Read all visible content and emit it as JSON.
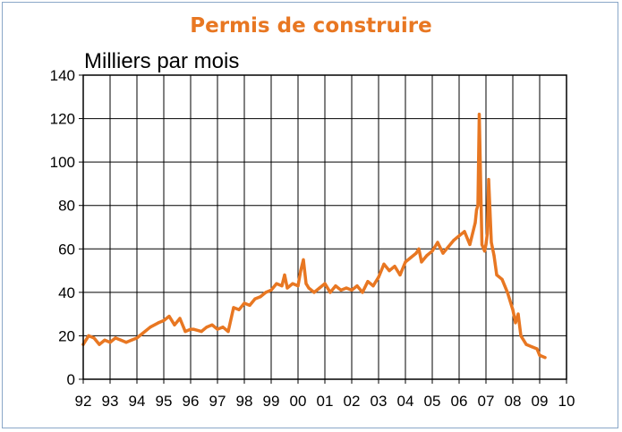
{
  "chart_data": {
    "type": "line",
    "title": "Permis de construire",
    "ylabel": "Milliers par mois",
    "xlabel": "",
    "ylim": [
      0,
      140
    ],
    "yticks": [
      0,
      20,
      40,
      60,
      80,
      100,
      120,
      140
    ],
    "xlim": [
      1992,
      2010
    ],
    "xtick_labels": [
      "92",
      "93",
      "94",
      "95",
      "96",
      "97",
      "98",
      "99",
      "00",
      "01",
      "02",
      "03",
      "04",
      "05",
      "06",
      "07",
      "08",
      "09",
      "10"
    ],
    "grid": true,
    "legend": "none",
    "color": "#e87722",
    "series": [
      {
        "x": [
          1992.0,
          1992.2,
          1992.4,
          1992.6,
          1992.8,
          1993.0,
          1993.2,
          1993.4,
          1993.6,
          1993.8,
          1994.0,
          1994.2,
          1994.5,
          1994.8,
          1995.0,
          1995.2,
          1995.4,
          1995.6,
          1995.8,
          1996.0,
          1996.1,
          1996.4,
          1996.6,
          1996.8,
          1997.0,
          1997.2,
          1997.4,
          1997.6,
          1997.8,
          1998.0,
          1998.2,
          1998.4,
          1998.6,
          1998.8,
          1999.0,
          1999.2,
          1999.4,
          1999.5,
          1999.6,
          1999.8,
          2000.0,
          2000.1,
          2000.2,
          2000.3,
          2000.4,
          2000.6,
          2000.8,
          2001.0,
          2001.2,
          2001.4,
          2001.6,
          2001.8,
          2002.0,
          2002.2,
          2002.4,
          2002.6,
          2002.8,
          2003.0,
          2003.2,
          2003.4,
          2003.6,
          2003.8,
          2004.0,
          2004.2,
          2004.4,
          2004.5,
          2004.6,
          2004.8,
          2005.0,
          2005.2,
          2005.4,
          2005.6,
          2005.8,
          2006.0,
          2006.2,
          2006.4,
          2006.6,
          2006.65,
          2006.7,
          2006.75,
          2006.85,
          2006.95,
          2007.0,
          2007.05,
          2007.1,
          2007.2,
          2007.3,
          2007.4,
          2007.6,
          2007.8,
          2008.0,
          2008.1,
          2008.2,
          2008.3,
          2008.5,
          2008.7,
          2008.9,
          2009.0,
          2009.2
        ],
        "y": [
          16,
          20,
          19,
          16,
          18,
          17,
          19,
          18,
          17,
          18,
          19,
          21,
          24,
          26,
          27,
          29,
          25,
          28,
          22,
          23,
          23,
          22,
          24,
          25,
          23,
          24,
          22,
          33,
          32,
          35,
          34,
          37,
          38,
          40,
          41,
          44,
          43,
          48,
          42,
          44,
          43,
          50,
          55,
          44,
          42,
          40,
          42,
          44,
          40,
          43,
          41,
          42,
          41,
          43,
          40,
          45,
          43,
          47,
          53,
          50,
          52,
          48,
          54,
          56,
          58,
          60,
          54,
          57,
          59,
          63,
          58,
          61,
          64,
          66,
          68,
          62,
          72,
          78,
          80,
          122,
          62,
          59,
          62,
          67,
          92,
          63,
          57,
          48,
          46,
          40,
          32,
          26,
          30,
          20,
          16,
          15,
          14,
          11,
          10
        ]
      }
    ]
  }
}
